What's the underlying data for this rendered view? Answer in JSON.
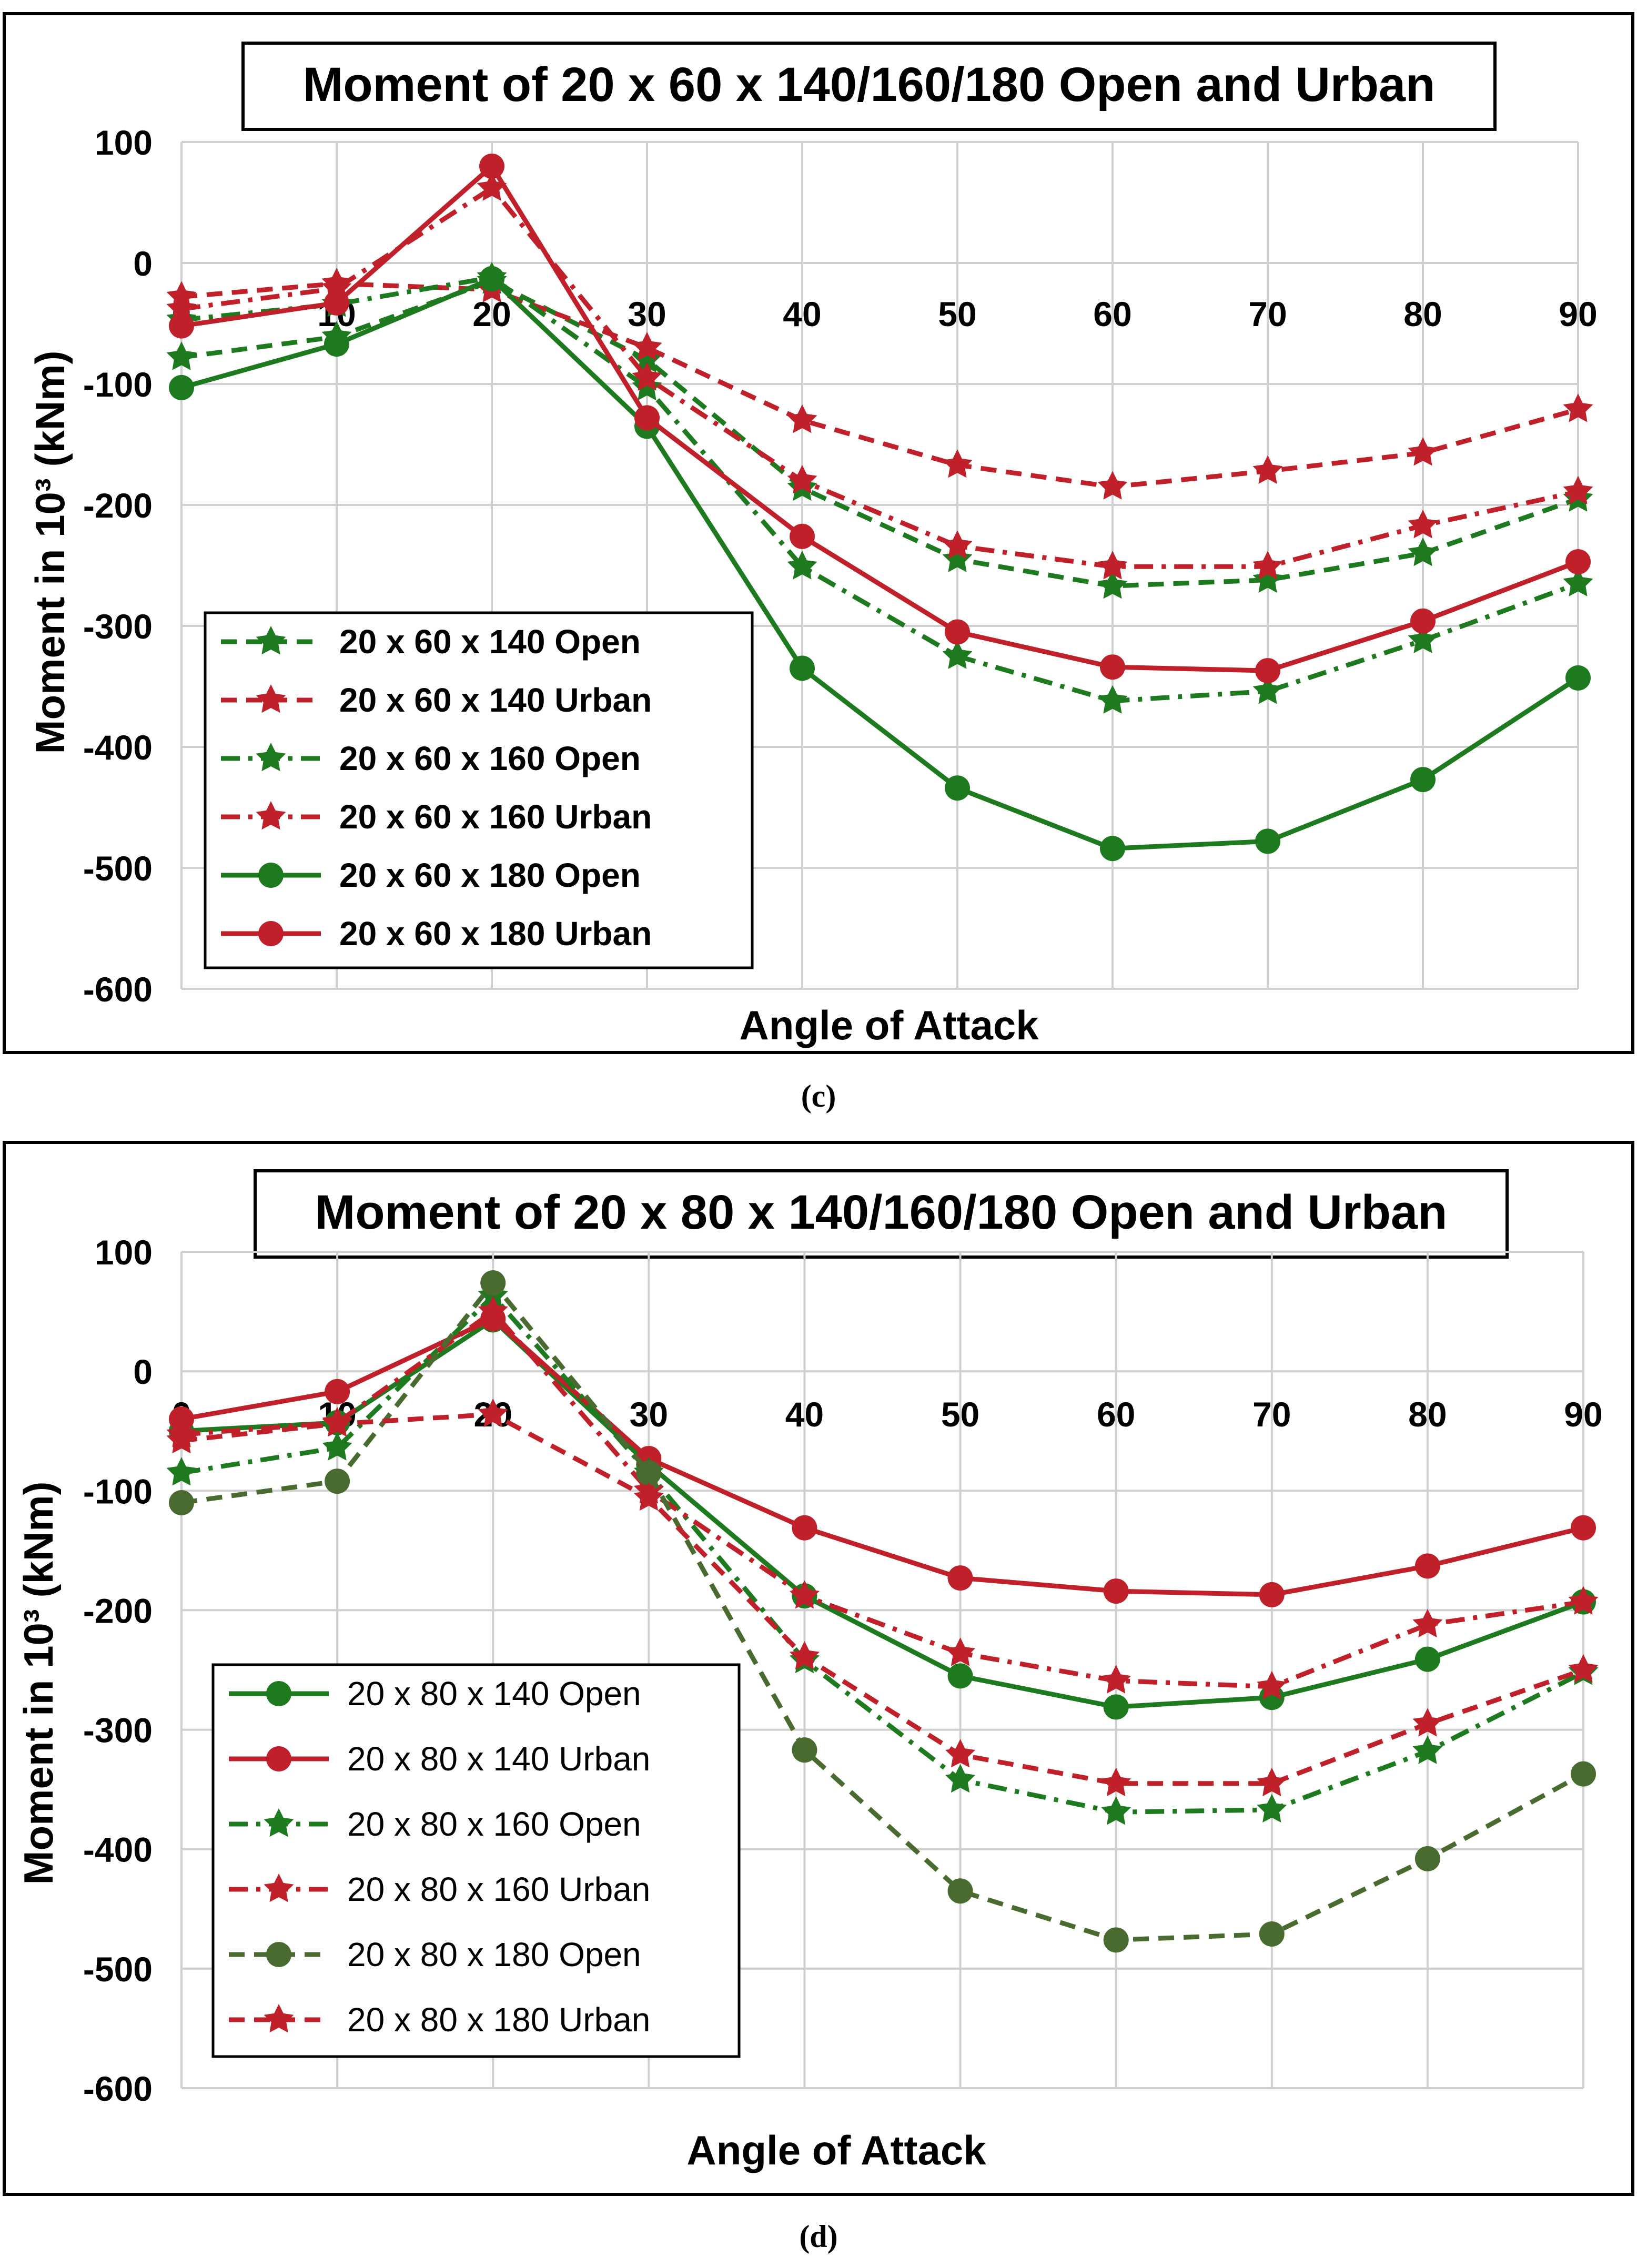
{
  "chart_data": [
    {
      "type": "line",
      "caption": "(c)",
      "title": "Moment of 20 x 60 x 140/160/180 Open and Urban",
      "xlabel": "Angle of Attack",
      "ylabel": "Moment in 10³ (kNm)",
      "ylim": [
        -600,
        100
      ],
      "yticks": [
        100,
        0,
        -100,
        -200,
        -300,
        -400,
        -500,
        -600
      ],
      "x": [
        0,
        10,
        20,
        30,
        40,
        50,
        60,
        70,
        80,
        90
      ],
      "grid": true,
      "legend_position": "bottom-left",
      "series": [
        {
          "name": "20 x 60 x 140 Open",
          "color": "#1e7a1e",
          "dash": "dash",
          "marker": "star",
          "values": [
            -78,
            -61,
            -15,
            -80,
            -186,
            -245,
            -267,
            -262,
            -240,
            -195
          ]
        },
        {
          "name": "20 x 60 x 140 Urban",
          "color": "#c0202a",
          "dash": "dash",
          "marker": "star",
          "values": [
            -28,
            -17,
            -22,
            -70,
            -130,
            -167,
            -185,
            -172,
            -157,
            -121
          ]
        },
        {
          "name": "20 x 60 x 160 Open",
          "color": "#1e7a1e",
          "dash": "dashdot",
          "marker": "star",
          "values": [
            -47,
            -34,
            -12,
            -103,
            -251,
            -325,
            -362,
            -354,
            -312,
            -265
          ]
        },
        {
          "name": "20 x 60 x 160 Urban",
          "color": "#c0202a",
          "dash": "dashdot",
          "marker": "star",
          "values": [
            -38,
            -21,
            62,
            -95,
            -180,
            -234,
            -251,
            -251,
            -217,
            -189
          ]
        },
        {
          "name": "20 x 60 x 180 Open",
          "color": "#1e7a1e",
          "dash": "solid",
          "marker": "circle",
          "values": [
            -103,
            -67,
            -13,
            -135,
            -335,
            -434,
            -484,
            -478,
            -427,
            -343
          ]
        },
        {
          "name": "20 x 60 x 180 Urban",
          "color": "#c0202a",
          "dash": "solid",
          "marker": "circle",
          "values": [
            -52,
            -33,
            80,
            -128,
            -226,
            -305,
            -334,
            -337,
            -296,
            -247
          ]
        }
      ]
    },
    {
      "type": "line",
      "caption": "(d)",
      "title": "Moment of 20 x 80 x 140/160/180 Open and Urban",
      "xlabel": "Angle of Attack",
      "ylabel": "Moment in 10³ (kNm)",
      "ylim": [
        -600,
        100
      ],
      "yticks": [
        100,
        0,
        -100,
        -200,
        -300,
        -400,
        -500,
        -600
      ],
      "x": [
        0,
        10,
        20,
        30,
        40,
        50,
        60,
        70,
        80,
        90
      ],
      "grid": true,
      "legend_position": "bottom-left",
      "series": [
        {
          "name": "20 x 80 x 140 Open",
          "color": "#1e7a1e",
          "dash": "solid",
          "marker": "circle",
          "values": [
            -50,
            -43,
            43,
            -78,
            -188,
            -255,
            -281,
            -273,
            -241,
            -193
          ]
        },
        {
          "name": "20 x 80 x 140 Urban",
          "color": "#c0202a",
          "dash": "solid",
          "marker": "circle",
          "values": [
            -40,
            -17,
            44,
            -73,
            -131,
            -173,
            -184,
            -187,
            -163,
            -131
          ]
        },
        {
          "name": "20 x 80 x 160 Open",
          "color": "#1e7a1e",
          "dash": "dashdot",
          "marker": "star",
          "values": [
            -85,
            -64,
            63,
            -85,
            -242,
            -342,
            -369,
            -367,
            -318,
            -252
          ]
        },
        {
          "name": "20 x 80 x 160 Urban",
          "color": "#c0202a",
          "dash": "dashdot",
          "marker": "star",
          "values": [
            -53,
            -43,
            50,
            -100,
            -188,
            -236,
            -259,
            -264,
            -212,
            -193
          ]
        },
        {
          "name": "20 x 80 x 180 Open",
          "color": "#4a6b30",
          "dash": "dash",
          "marker": "circle",
          "values": [
            -110,
            -92,
            74,
            -85,
            -317,
            -435,
            -476,
            -471,
            -408,
            -337
          ]
        },
        {
          "name": "20 x 80 x 180 Urban",
          "color": "#c0202a",
          "dash": "dash",
          "marker": "star",
          "values": [
            -58,
            -44,
            -36,
            -106,
            -239,
            -321,
            -345,
            -345,
            -295,
            -250
          ]
        }
      ]
    }
  ]
}
